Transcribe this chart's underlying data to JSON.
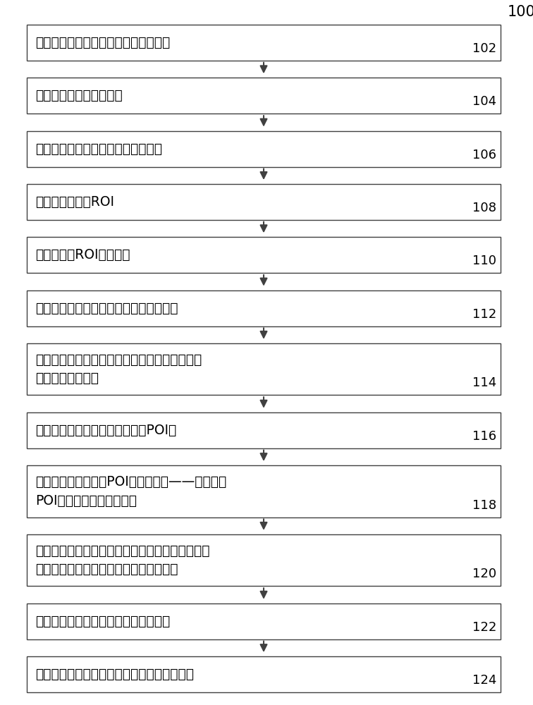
{
  "title_label": "100",
  "background_color": "#ffffff",
  "box_edge_color": "#404040",
  "box_face_color": "#ffffff",
  "text_color": "#000000",
  "arrow_color": "#404040",
  "steps": [
    {
      "label": "采集和存储单独的视网膜图像的视频流",
      "number": "102",
      "lines": 1
    },
    {
      "label": "对采集的图像进行小型化",
      "number": "104",
      "lines": 1
    },
    {
      "label": "确定在图像传感器上图像定位在何处",
      "number": "106",
      "lines": 1
    },
    {
      "label": "确定单独图像的ROI",
      "number": "108",
      "lines": 1
    },
    {
      "label": "根据确定的ROI裁剪图像",
      "number": "110",
      "lines": 1
    },
    {
      "label": "测量图像的图像属性，丢弃不适合的图像",
      "number": "112",
      "lines": 1
    },
    {
      "label": "对适合的小型化和裁剪的图像执行实时边缘检测\n以产生二进制图像",
      "number": "114",
      "lines": 2
    },
    {
      "label": "标识二进制图像中的感兴趣点（POI）",
      "number": "116",
      "lines": 1
    },
    {
      "label": "确定二进制图像中的POI的相对位置——利用相对\nPOI位置信息填充数据结构",
      "number": "118",
      "lines": 2
    },
    {
      "label": "将图像与先前处理的图像相比较以确定图像是否具\n有新区域或具有比先前的图像更好的质量",
      "number": "120",
      "lines": 2
    },
    {
      "label": "将更好的图像或新图像添加到图像全景",
      "number": "122",
      "lines": 1
    },
    {
      "label": "基于实现所指定的视场测量全景视场终止过程",
      "number": "124",
      "lines": 1
    }
  ],
  "font_size_chinese": 13.5,
  "font_size_number": 13,
  "font_size_title": 15
}
